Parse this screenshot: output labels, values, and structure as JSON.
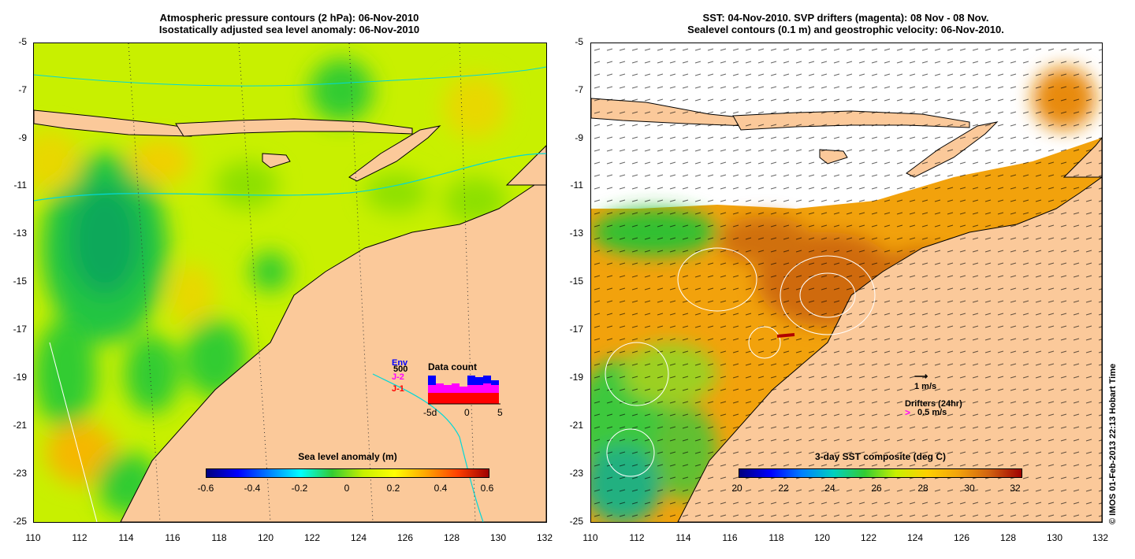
{
  "left": {
    "title_line1": "Atmospheric pressure contours (2 hPa): 06-Nov-2010",
    "title_line2": "Isostatically adjusted sea level anomaly: 06-Nov-2010",
    "y_ticks": [
      "-5",
      "-7",
      "-9",
      "-11",
      "-13",
      "-15",
      "-17",
      "-19",
      "-21",
      "-23",
      "-25"
    ],
    "x_ticks": [
      "110",
      "112",
      "114",
      "116",
      "118",
      "120",
      "122",
      "124",
      "126",
      "128",
      "130",
      "132"
    ],
    "colorbar_title": "Sea level anomaly (m)",
    "colorbar_ticks": [
      "-0.6",
      "-0.4",
      "-0.2",
      "0",
      "0.2",
      "0.4",
      "0.6"
    ],
    "inset": {
      "title": "Data count",
      "legend_env": "Env",
      "legend_count": "500",
      "legend_j2": "J-2",
      "legend_j1": "J-1",
      "x_ticks": [
        "-5d",
        "0",
        "5"
      ]
    }
  },
  "right": {
    "title_line1": "SST: 04-Nov-2010. SVP drifters (magenta): 08 Nov - 08 Nov.",
    "title_line2": "Sealevel contours (0.1 m) and geostrophic velocity: 06-Nov-2010.",
    "y_ticks": [
      "-5",
      "-7",
      "-9",
      "-11",
      "-13",
      "-15",
      "-17",
      "-19",
      "-21",
      "-23",
      "-25"
    ],
    "x_ticks": [
      "110",
      "112",
      "114",
      "116",
      "118",
      "120",
      "122",
      "124",
      "126",
      "128",
      "130",
      "132"
    ],
    "colorbar_title": "3-day SST composite (deg C)",
    "colorbar_ticks": [
      "20",
      "22",
      "24",
      "26",
      "28",
      "30",
      "32"
    ],
    "vector_scale_label": "1 m/s",
    "drifters_label": "Drifters (24hr)",
    "drifters_speed": "0.5 m/s",
    "drifters_symbol": ">"
  },
  "credit": "© IMOS 01-Feb-2013 22:13 Hobart Time",
  "colors": {
    "land": "#fbc99a",
    "sla_background": "#c8f000",
    "sst_background": "#f2a20c",
    "drifter": "#ff00ff",
    "coastline": "#000000",
    "bathymetry": "#00d8d8"
  }
}
